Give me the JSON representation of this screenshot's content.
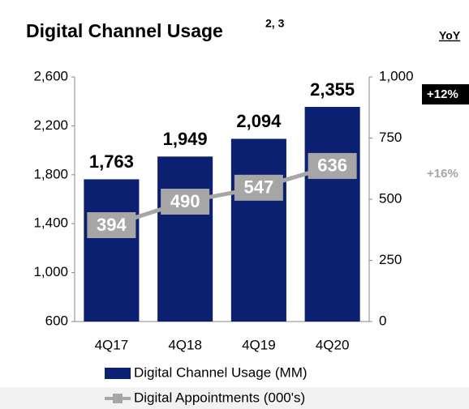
{
  "chart_data": {
    "type": "bar",
    "title": "Digital Channel Usage",
    "title_superscript": "2, 3",
    "categories": [
      "4Q17",
      "4Q18",
      "4Q19",
      "4Q20"
    ],
    "series": [
      {
        "name": "Digital Channel Usage (MM)",
        "color": "#0c2071",
        "values": [
          1763,
          1949,
          2094,
          2355
        ],
        "value_labels": [
          "1,763",
          "1,949",
          "2,094",
          "2,355"
        ]
      },
      {
        "name": "Digital Appointments (000's)",
        "type": "line",
        "axis": "y2",
        "color": "#a6a6a6",
        "values": [
          394,
          490,
          547,
          636
        ]
      }
    ],
    "ylim": [
      600,
      2600
    ],
    "yticks": [
      {
        "value": 600,
        "label": "600"
      },
      {
        "value": 1000,
        "label": "1,000"
      },
      {
        "value": 1400,
        "label": "1,400"
      },
      {
        "value": 1800,
        "label": "1,800"
      },
      {
        "value": 2200,
        "label": "2,200"
      },
      {
        "value": 2600,
        "label": "2,600"
      }
    ],
    "y2lim": [
      0,
      1000
    ],
    "y2ticks": [
      0,
      250,
      500,
      750,
      {
        "value": 1000,
        "label": "1,000"
      }
    ],
    "grid": false,
    "legend": "bottom",
    "annotations": {
      "header": "YoY",
      "bar_change": "+12%",
      "line_change": "+16%"
    }
  }
}
